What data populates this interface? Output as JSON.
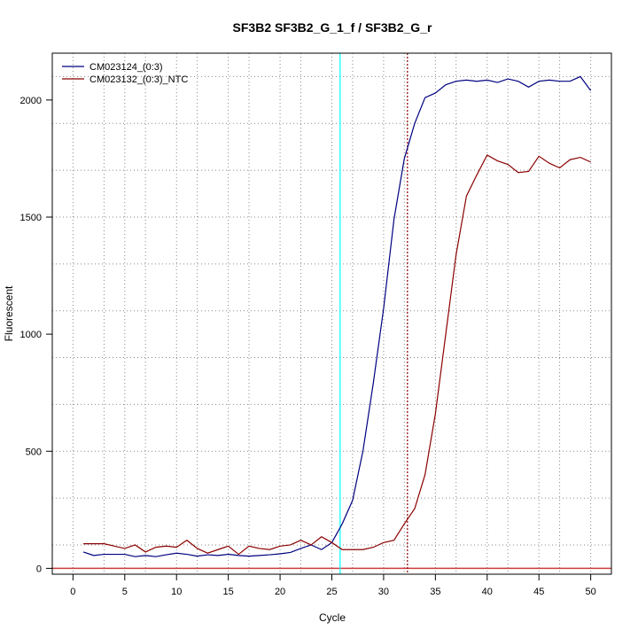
{
  "chart_data": {
    "type": "line",
    "title": "SF3B2  SF3B2_G_1_f / SF3B2_G_r",
    "xlabel": "Cycle",
    "ylabel": "Fluorescent",
    "xlim": [
      -2,
      52
    ],
    "ylim": [
      -25,
      2200
    ],
    "xticks": [
      0,
      5,
      10,
      15,
      20,
      25,
      30,
      35,
      40,
      45,
      50
    ],
    "yticks": [
      0,
      500,
      1000,
      1500,
      2000
    ],
    "x_minor_grid": [
      3,
      7,
      12,
      17,
      22,
      27,
      32,
      37,
      42,
      47
    ],
    "y_grid": [
      100,
      300,
      500,
      700,
      900,
      1100,
      1300,
      1500,
      1700,
      1900,
      2100
    ],
    "grid": true,
    "legend_position": "top-left",
    "series": [
      {
        "name": "CM023124_(0:3)",
        "color": "#000080",
        "x": [
          1,
          2,
          3,
          4,
          5,
          6,
          7,
          8,
          9,
          10,
          11,
          12,
          13,
          14,
          15,
          16,
          17,
          18,
          19,
          20,
          21,
          22,
          23,
          24,
          25,
          26,
          27,
          28,
          29,
          30,
          31,
          32,
          33,
          34,
          35,
          36,
          37,
          38,
          39,
          40,
          41,
          42,
          43,
          44,
          45,
          46,
          47,
          48,
          49,
          50
        ],
        "values": [
          70,
          55,
          60,
          60,
          60,
          50,
          55,
          50,
          58,
          65,
          60,
          52,
          58,
          55,
          60,
          55,
          52,
          55,
          58,
          62,
          68,
          85,
          100,
          80,
          110,
          190,
          290,
          500,
          790,
          1110,
          1490,
          1750,
          1900,
          2010,
          2030,
          2065,
          2080,
          2085,
          2080,
          2085,
          2075,
          2090,
          2080,
          2055,
          2080,
          2085,
          2080,
          2080,
          2100,
          2040
        ]
      },
      {
        "name": "CM023132_(0:3)_NTC",
        "color": "#8b0000",
        "x": [
          1,
          2,
          3,
          4,
          5,
          6,
          7,
          8,
          9,
          10,
          11,
          12,
          13,
          14,
          15,
          16,
          17,
          18,
          19,
          20,
          21,
          22,
          23,
          24,
          25,
          26,
          27,
          28,
          29,
          30,
          31,
          32,
          33,
          34,
          35,
          36,
          37,
          38,
          39,
          40,
          41,
          42,
          43,
          44,
          45,
          46,
          47,
          48,
          49,
          50
        ],
        "values": [
          105,
          105,
          105,
          95,
          85,
          100,
          70,
          90,
          95,
          90,
          120,
          85,
          65,
          80,
          95,
          60,
          95,
          85,
          80,
          95,
          100,
          120,
          100,
          135,
          110,
          80,
          80,
          80,
          90,
          110,
          120,
          190,
          255,
          400,
          660,
          1000,
          1340,
          1590,
          1680,
          1765,
          1740,
          1725,
          1690,
          1695,
          1760,
          1730,
          1710,
          1745,
          1755,
          1735
        ]
      }
    ],
    "threshold_line": {
      "value": 0,
      "color": "#cd3b3b"
    },
    "vertical_markers": [
      {
        "x": 25.8,
        "color": "#00ffff",
        "style": "solid"
      },
      {
        "x": 32.3,
        "color": "#8b0000",
        "style": "dotted"
      }
    ]
  }
}
